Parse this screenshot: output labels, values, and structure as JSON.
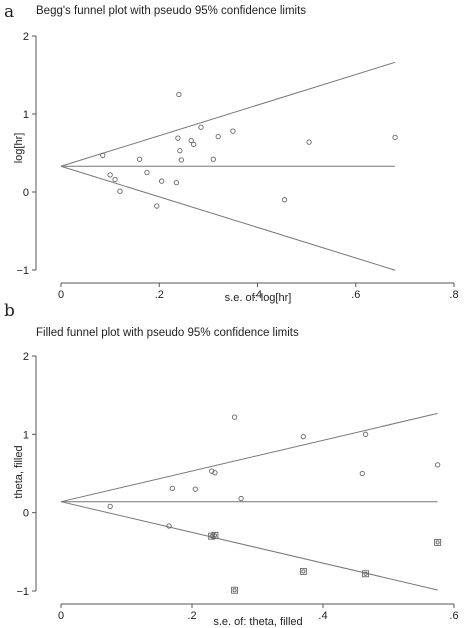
{
  "chart_data": [
    {
      "type": "scatter",
      "panel": "a",
      "title": "Begg's funnel plot with pseudo 95% confidence limits",
      "xlabel": "s.e. of: log[hr]",
      "ylabel": "log[hr]",
      "xlim": [
        0,
        0.8
      ],
      "ylim": [
        -1,
        2
      ],
      "xticks": [
        {
          "v": 0,
          "label": "0"
        },
        {
          "v": 0.2,
          "label": ".2"
        },
        {
          "v": 0.4,
          "label": ".4"
        },
        {
          "v": 0.6,
          "label": ".6"
        },
        {
          "v": 0.8,
          "label": ".8"
        }
      ],
      "yticks": [
        {
          "v": -1,
          "label": "−1"
        },
        {
          "v": 0,
          "label": "0"
        },
        {
          "v": 1,
          "label": "1"
        },
        {
          "v": 2,
          "label": "2"
        }
      ],
      "pooled": 0.33,
      "limit_xmax": 0.68,
      "points": [
        {
          "x": 0.085,
          "y": 0.47
        },
        {
          "x": 0.1,
          "y": 0.22
        },
        {
          "x": 0.11,
          "y": 0.16
        },
        {
          "x": 0.12,
          "y": 0.01
        },
        {
          "x": 0.16,
          "y": 0.42
        },
        {
          "x": 0.175,
          "y": 0.25
        },
        {
          "x": 0.195,
          "y": -0.18
        },
        {
          "x": 0.205,
          "y": 0.14
        },
        {
          "x": 0.235,
          "y": 0.12
        },
        {
          "x": 0.238,
          "y": 0.69
        },
        {
          "x": 0.24,
          "y": 1.25
        },
        {
          "x": 0.242,
          "y": 0.53
        },
        {
          "x": 0.245,
          "y": 0.41
        },
        {
          "x": 0.265,
          "y": 0.66
        },
        {
          "x": 0.27,
          "y": 0.61
        },
        {
          "x": 0.285,
          "y": 0.83
        },
        {
          "x": 0.31,
          "y": 0.42
        },
        {
          "x": 0.32,
          "y": 0.71
        },
        {
          "x": 0.35,
          "y": 0.78
        },
        {
          "x": 0.455,
          "y": -0.1
        },
        {
          "x": 0.505,
          "y": 0.64
        },
        {
          "x": 0.68,
          "y": 0.7
        }
      ],
      "filled": []
    },
    {
      "type": "scatter",
      "panel": "b",
      "title": "Filled funnel plot with pseudo 95% confidence limits",
      "xlabel": "s.e. of: theta, filled",
      "ylabel": "theta, filled",
      "xlim": [
        0,
        0.6
      ],
      "ylim": [
        -1,
        2
      ],
      "xticks": [
        {
          "v": 0,
          "label": "0"
        },
        {
          "v": 0.2,
          "label": ".2"
        },
        {
          "v": 0.4,
          "label": ".4"
        },
        {
          "v": 0.6,
          "label": ".6"
        }
      ],
      "yticks": [
        {
          "v": -1,
          "label": "−1"
        },
        {
          "v": 0,
          "label": "0"
        },
        {
          "v": 1,
          "label": "1"
        },
        {
          "v": 2,
          "label": "2"
        }
      ],
      "pooled": 0.14,
      "limit_xmax": 0.575,
      "points": [
        {
          "x": 0.075,
          "y": 0.08
        },
        {
          "x": 0.165,
          "y": -0.17
        },
        {
          "x": 0.17,
          "y": 0.31
        },
        {
          "x": 0.205,
          "y": 0.3
        },
        {
          "x": 0.23,
          "y": 0.53
        },
        {
          "x": 0.235,
          "y": 0.51
        },
        {
          "x": 0.265,
          "y": 1.22
        },
        {
          "x": 0.275,
          "y": 0.18
        },
        {
          "x": 0.37,
          "y": 0.97
        },
        {
          "x": 0.46,
          "y": 0.5
        },
        {
          "x": 0.465,
          "y": 1.0
        },
        {
          "x": 0.575,
          "y": 0.61
        }
      ],
      "filled": [
        {
          "x": 0.23,
          "y": -0.3
        },
        {
          "x": 0.235,
          "y": -0.29
        },
        {
          "x": 0.265,
          "y": -0.99
        },
        {
          "x": 0.37,
          "y": -0.75
        },
        {
          "x": 0.465,
          "y": -0.78
        },
        {
          "x": 0.575,
          "y": -0.38
        }
      ]
    }
  ]
}
